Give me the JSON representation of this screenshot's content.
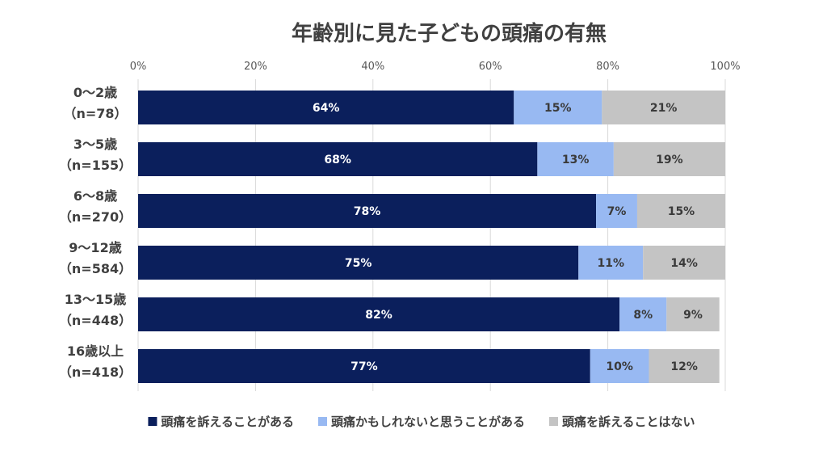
{
  "chart_data": {
    "type": "bar",
    "orientation": "horizontal",
    "stacked": true,
    "normalized": true,
    "title": "年齢別に見た子どもの頭痛の有無",
    "xlabel": "",
    "ylabel": "",
    "xlim": [
      0,
      100
    ],
    "ticks": [
      "0%",
      "20%",
      "40%",
      "60%",
      "80%",
      "100%"
    ],
    "grid": true,
    "legend_position": "bottom",
    "categories": [
      [
        "0～2歳",
        "（n=78）"
      ],
      [
        "3～5歳",
        "（n=155）"
      ],
      [
        "6～8歳",
        "（n=270）"
      ],
      [
        "9～12歳",
        "（n=584）"
      ],
      [
        "13～15歳",
        "（n=448）"
      ],
      [
        "16歳以上",
        "（n=418）"
      ]
    ],
    "series": [
      {
        "name": "頭痛を訴えることがある",
        "color": "#0b1f5c",
        "label_color": "#ffffff",
        "values": [
          64,
          68,
          78,
          75,
          82,
          77
        ]
      },
      {
        "name": "頭痛かもしれないと思うことがある",
        "color": "#98b9f2",
        "label_color": "#3a3a3a",
        "values": [
          15,
          13,
          7,
          11,
          8,
          10
        ]
      },
      {
        "name": "頭痛を訴えることはない",
        "color": "#c4c4c4",
        "label_color": "#3a3a3a",
        "values": [
          21,
          19,
          15,
          14,
          9,
          12
        ]
      }
    ],
    "value_suffix": "%"
  }
}
